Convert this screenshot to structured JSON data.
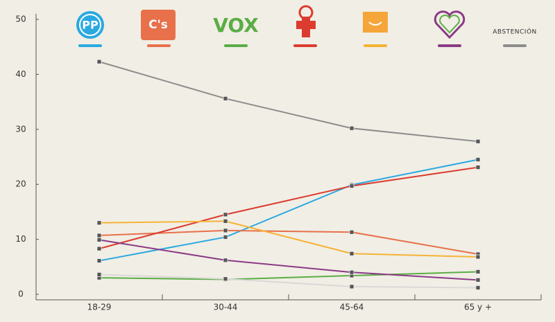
{
  "chart_data": {
    "type": "line",
    "categories": [
      "18-29",
      "30-44",
      "45-64",
      "65 y +"
    ],
    "ylim": [
      0,
      50
    ],
    "yticks": [
      0,
      10,
      20,
      30,
      40,
      50
    ],
    "series": [
      {
        "name": "PP",
        "color": "#29a9e0",
        "values": [
          6.1,
          10.4,
          19.9,
          24.5
        ]
      },
      {
        "name": "C's",
        "color": "#e8704a",
        "values": [
          10.7,
          11.6,
          11.3,
          7.3
        ]
      },
      {
        "name": "VOX",
        "color": "#5aad45",
        "values": [
          3.0,
          2.7,
          3.4,
          4.1
        ]
      },
      {
        "color": "#dc3b2f",
        "values": [
          8.3,
          14.5,
          19.7,
          23.1
        ]
      },
      {
        "color": "#f5b335",
        "values": [
          13.0,
          13.3,
          7.4,
          6.8
        ]
      },
      {
        "color": "#8a3a86",
        "values": [
          9.9,
          6.2,
          4.0,
          2.6
        ]
      },
      {
        "name": "ABSTENCIÓN",
        "color": "#8c8c8c",
        "values": [
          42.3,
          35.6,
          30.2,
          27.8
        ]
      },
      {
        "color": "#d9d9d6",
        "values": [
          3.6,
          2.8,
          1.4,
          1.2
        ]
      }
    ]
  }
}
